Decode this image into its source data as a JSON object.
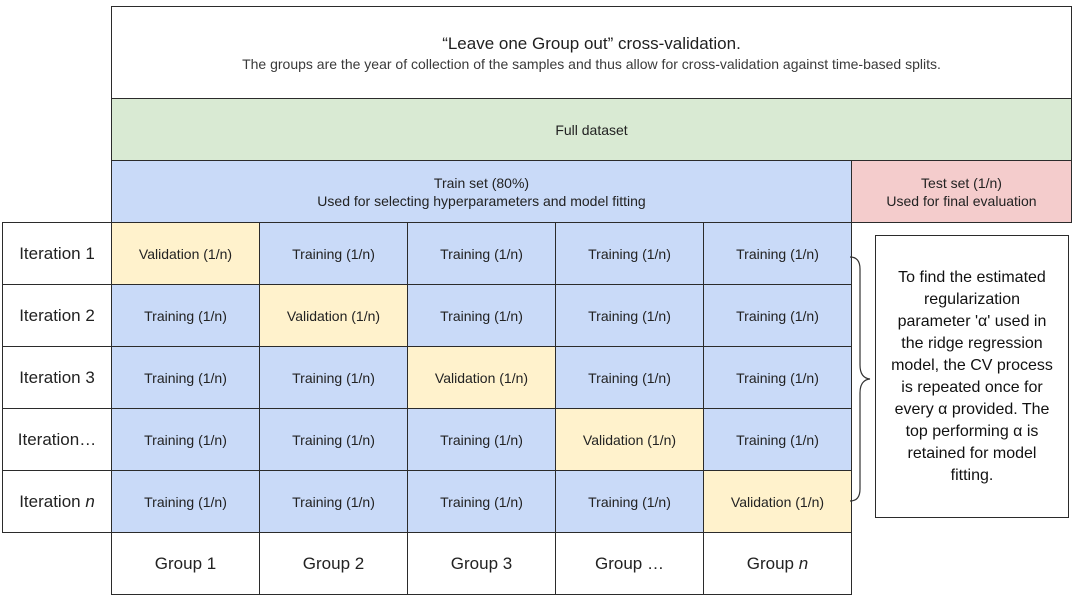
{
  "colors": {
    "full_dataset": "#d9ead3",
    "train": "#c9daf8",
    "validation": "#fff2cc",
    "test": "#f4cccc"
  },
  "header": {
    "title": "“Leave one Group  out” cross-validation.",
    "subtitle": "The groups are the year of collection of the samples and thus allow for cross-validation against time-based splits."
  },
  "full_dataset": {
    "label": "Full dataset"
  },
  "train_set": {
    "line1": "Train set (80%)",
    "line2": "Used for selecting hyperparameters and model fitting"
  },
  "test_set": {
    "line1": "Test set (1/n)",
    "line2": "Used for final evaluation"
  },
  "iterations": [
    {
      "label": "Iteration 1",
      "label_italic": "",
      "cells": [
        "Validation (1/n)",
        "Training (1/n)",
        "Training (1/n)",
        "Training (1/n)",
        "Training (1/n)"
      ],
      "kinds": [
        "validation",
        "train",
        "train",
        "train",
        "train"
      ]
    },
    {
      "label": "Iteration 2",
      "label_italic": "",
      "cells": [
        "Training (1/n)",
        "Validation (1/n)",
        "Training (1/n)",
        "Training (1/n)",
        "Training (1/n)"
      ],
      "kinds": [
        "train",
        "validation",
        "train",
        "train",
        "train"
      ]
    },
    {
      "label": "Iteration 3",
      "label_italic": "",
      "cells": [
        "Training (1/n)",
        "Training (1/n)",
        "Validation (1/n)",
        "Training (1/n)",
        "Training (1/n)"
      ],
      "kinds": [
        "train",
        "train",
        "validation",
        "train",
        "train"
      ]
    },
    {
      "label": "Iteration…",
      "label_italic": "",
      "cells": [
        "Training (1/n)",
        "Training (1/n)",
        "Training (1/n)",
        "Validation (1/n)",
        "Training (1/n)"
      ],
      "kinds": [
        "train",
        "train",
        "train",
        "validation",
        "train"
      ]
    },
    {
      "label": "Iteration ",
      "label_italic": "n",
      "cells": [
        "Training (1/n)",
        "Training (1/n)",
        "Training (1/n)",
        "Training (1/n)",
        "Validation (1/n)"
      ],
      "kinds": [
        "train",
        "train",
        "train",
        "train",
        "validation"
      ]
    }
  ],
  "groups": [
    {
      "label": "Group 1",
      "italic": ""
    },
    {
      "label": "Group 2",
      "italic": ""
    },
    {
      "label": "Group 3",
      "italic": ""
    },
    {
      "label": "Group …",
      "italic": ""
    },
    {
      "label": "Group ",
      "italic": "n"
    }
  ],
  "note": {
    "text": "To find the estimated regularization parameter 'α' used in the ridge regression model, the CV process is repeated once for every α provided. The top performing α is retained for model fitting."
  }
}
